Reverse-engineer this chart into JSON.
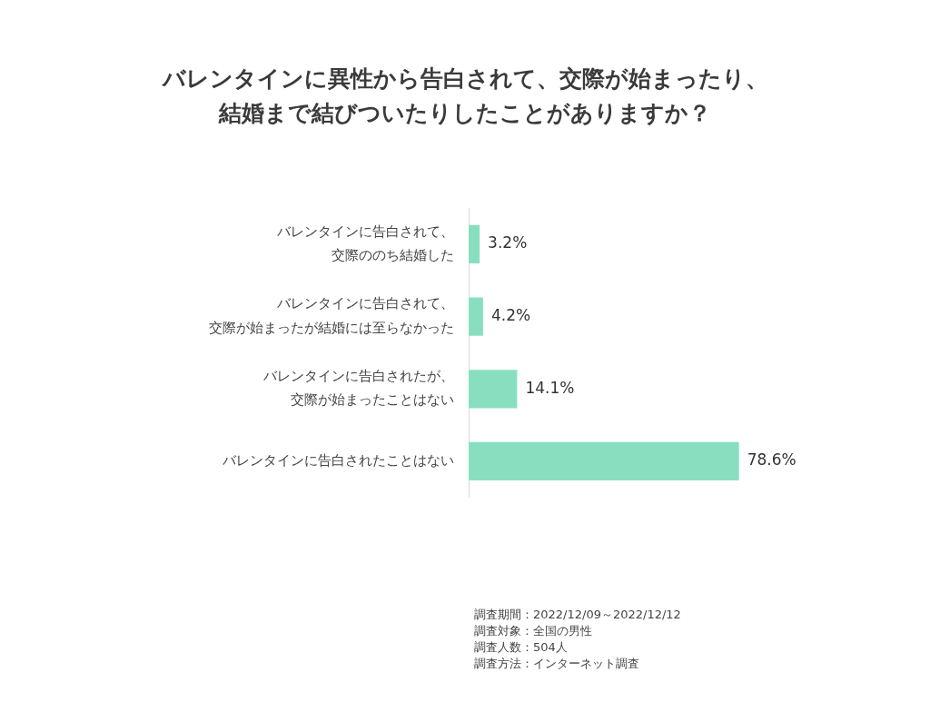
{
  "chart_data": {
    "type": "bar",
    "orientation": "horizontal",
    "title": "バレンタインに異性から告白されて、交際が始まったり、結婚まで結びついたりしたことがありますか？",
    "categories": [
      "バレンタインに告白されて、交際ののち結婚した",
      "バレンタインに告白されて、交際が始まったが結婚には至らなかった",
      "バレンタインに告白されたが、交際が始まったことはない",
      "バレンタインに告白されたことはない"
    ],
    "values": [
      3.2,
      4.2,
      14.1,
      78.6
    ],
    "value_labels": [
      "3.2%",
      "4.2%",
      "14.1%",
      "78.6%"
    ],
    "color": "#88dfc0",
    "tick_labels": "y",
    "legend": false,
    "annotations": [
      "調査期間：2022/12/09～2022/12/12",
      "調査対象：全国の男性",
      "調査人数：504人",
      "調査方法：インターネット調査"
    ]
  }
}
